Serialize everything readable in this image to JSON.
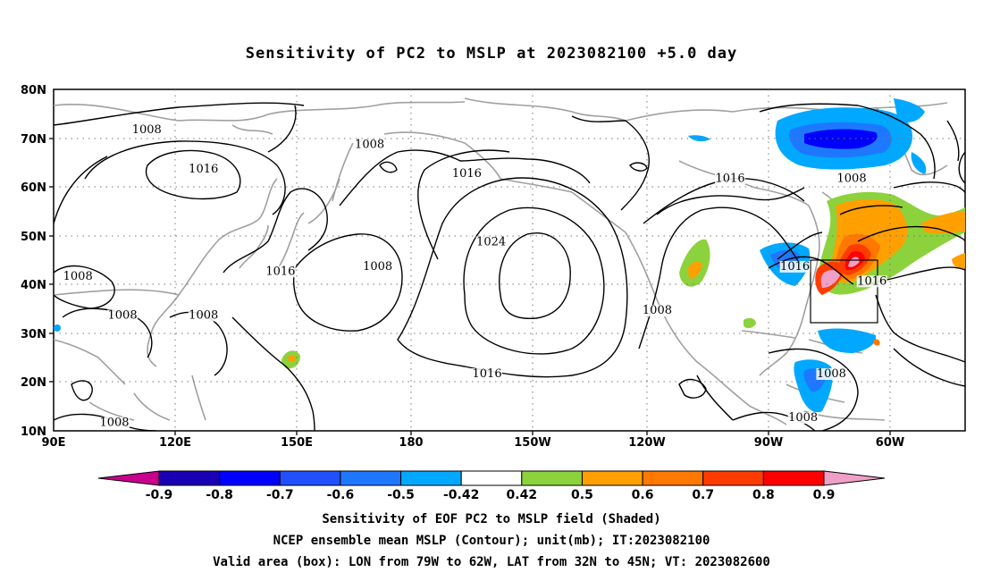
{
  "title": "Sensitivity of PC2 to MSLP at 2023082100 +5.0 day",
  "map": {
    "lat_labels": [
      "80N",
      "70N",
      "60N",
      "50N",
      "40N",
      "30N",
      "20N",
      "10N"
    ],
    "lon_labels": [
      "90E",
      "120E",
      "150E",
      "180",
      "150W",
      "120W",
      "90W",
      "60W"
    ],
    "contour_labels": [
      {
        "text": "1008",
        "lon": 113,
        "lat": 71
      },
      {
        "text": "1016",
        "lon": 127,
        "lat": 63
      },
      {
        "text": "1008",
        "lon": 168,
        "lat": 68
      },
      {
        "text": "1016",
        "lon": 192,
        "lat": 62
      },
      {
        "text": "1024",
        "lon": 198,
        "lat": 48
      },
      {
        "text": "1008",
        "lon": 170,
        "lat": 43
      },
      {
        "text": "1016",
        "lon": 146,
        "lat": 42
      },
      {
        "text": "1008",
        "lon": 96,
        "lat": 41
      },
      {
        "text": "1008",
        "lon": 107,
        "lat": 33
      },
      {
        "text": "1008",
        "lon": 127,
        "lat": 33
      },
      {
        "text": "1008",
        "lon": 105,
        "lat": 11
      },
      {
        "text": "1016",
        "lon": 197,
        "lat": 21
      },
      {
        "text": "1008",
        "lon": 239,
        "lat": 34
      },
      {
        "text": "1016",
        "lon": 257,
        "lat": 61
      },
      {
        "text": "1008",
        "lon": 287,
        "lat": 61
      },
      {
        "text": "1016",
        "lon": 273,
        "lat": 43
      },
      {
        "text": "1016",
        "lon": 292,
        "lat": 40
      },
      {
        "text": "1008",
        "lon": 282,
        "lat": 21
      },
      {
        "text": "1008",
        "lon": 275,
        "lat": 12
      }
    ],
    "valid_box": {
      "lon_min": 281,
      "lon_max": 298,
      "lat_min": 32,
      "lat_max": 45
    },
    "shading": {
      "positive_max_near": "40N 70W",
      "negative_max_near": "70N 75W"
    }
  },
  "colorbar": {
    "labels": [
      "-0.9",
      "-0.8",
      "-0.7",
      "-0.6",
      "-0.5",
      "-0.42",
      "0.42",
      "0.5",
      "0.6",
      "0.7",
      "0.8",
      "0.9"
    ],
    "colors": [
      "#c8008c",
      "#1a00b4",
      "#0000ff",
      "#2050ff",
      "#1e78ff",
      "#00a8ff",
      "#ffffff",
      "#8cd23c",
      "#ffa000",
      "#ff7800",
      "#ff3c00",
      "#ff0000",
      "#f0a0c8"
    ]
  },
  "captions": [
    "Sensitivity of EOF PC2 to MSLP field (Shaded)",
    "NCEP ensemble mean MSLP (Contour); unit(mb); IT:2023082100",
    "Valid area (box): LON from 79W to 62W, LAT from 32N to 45N; VT: 2023082600"
  ]
}
